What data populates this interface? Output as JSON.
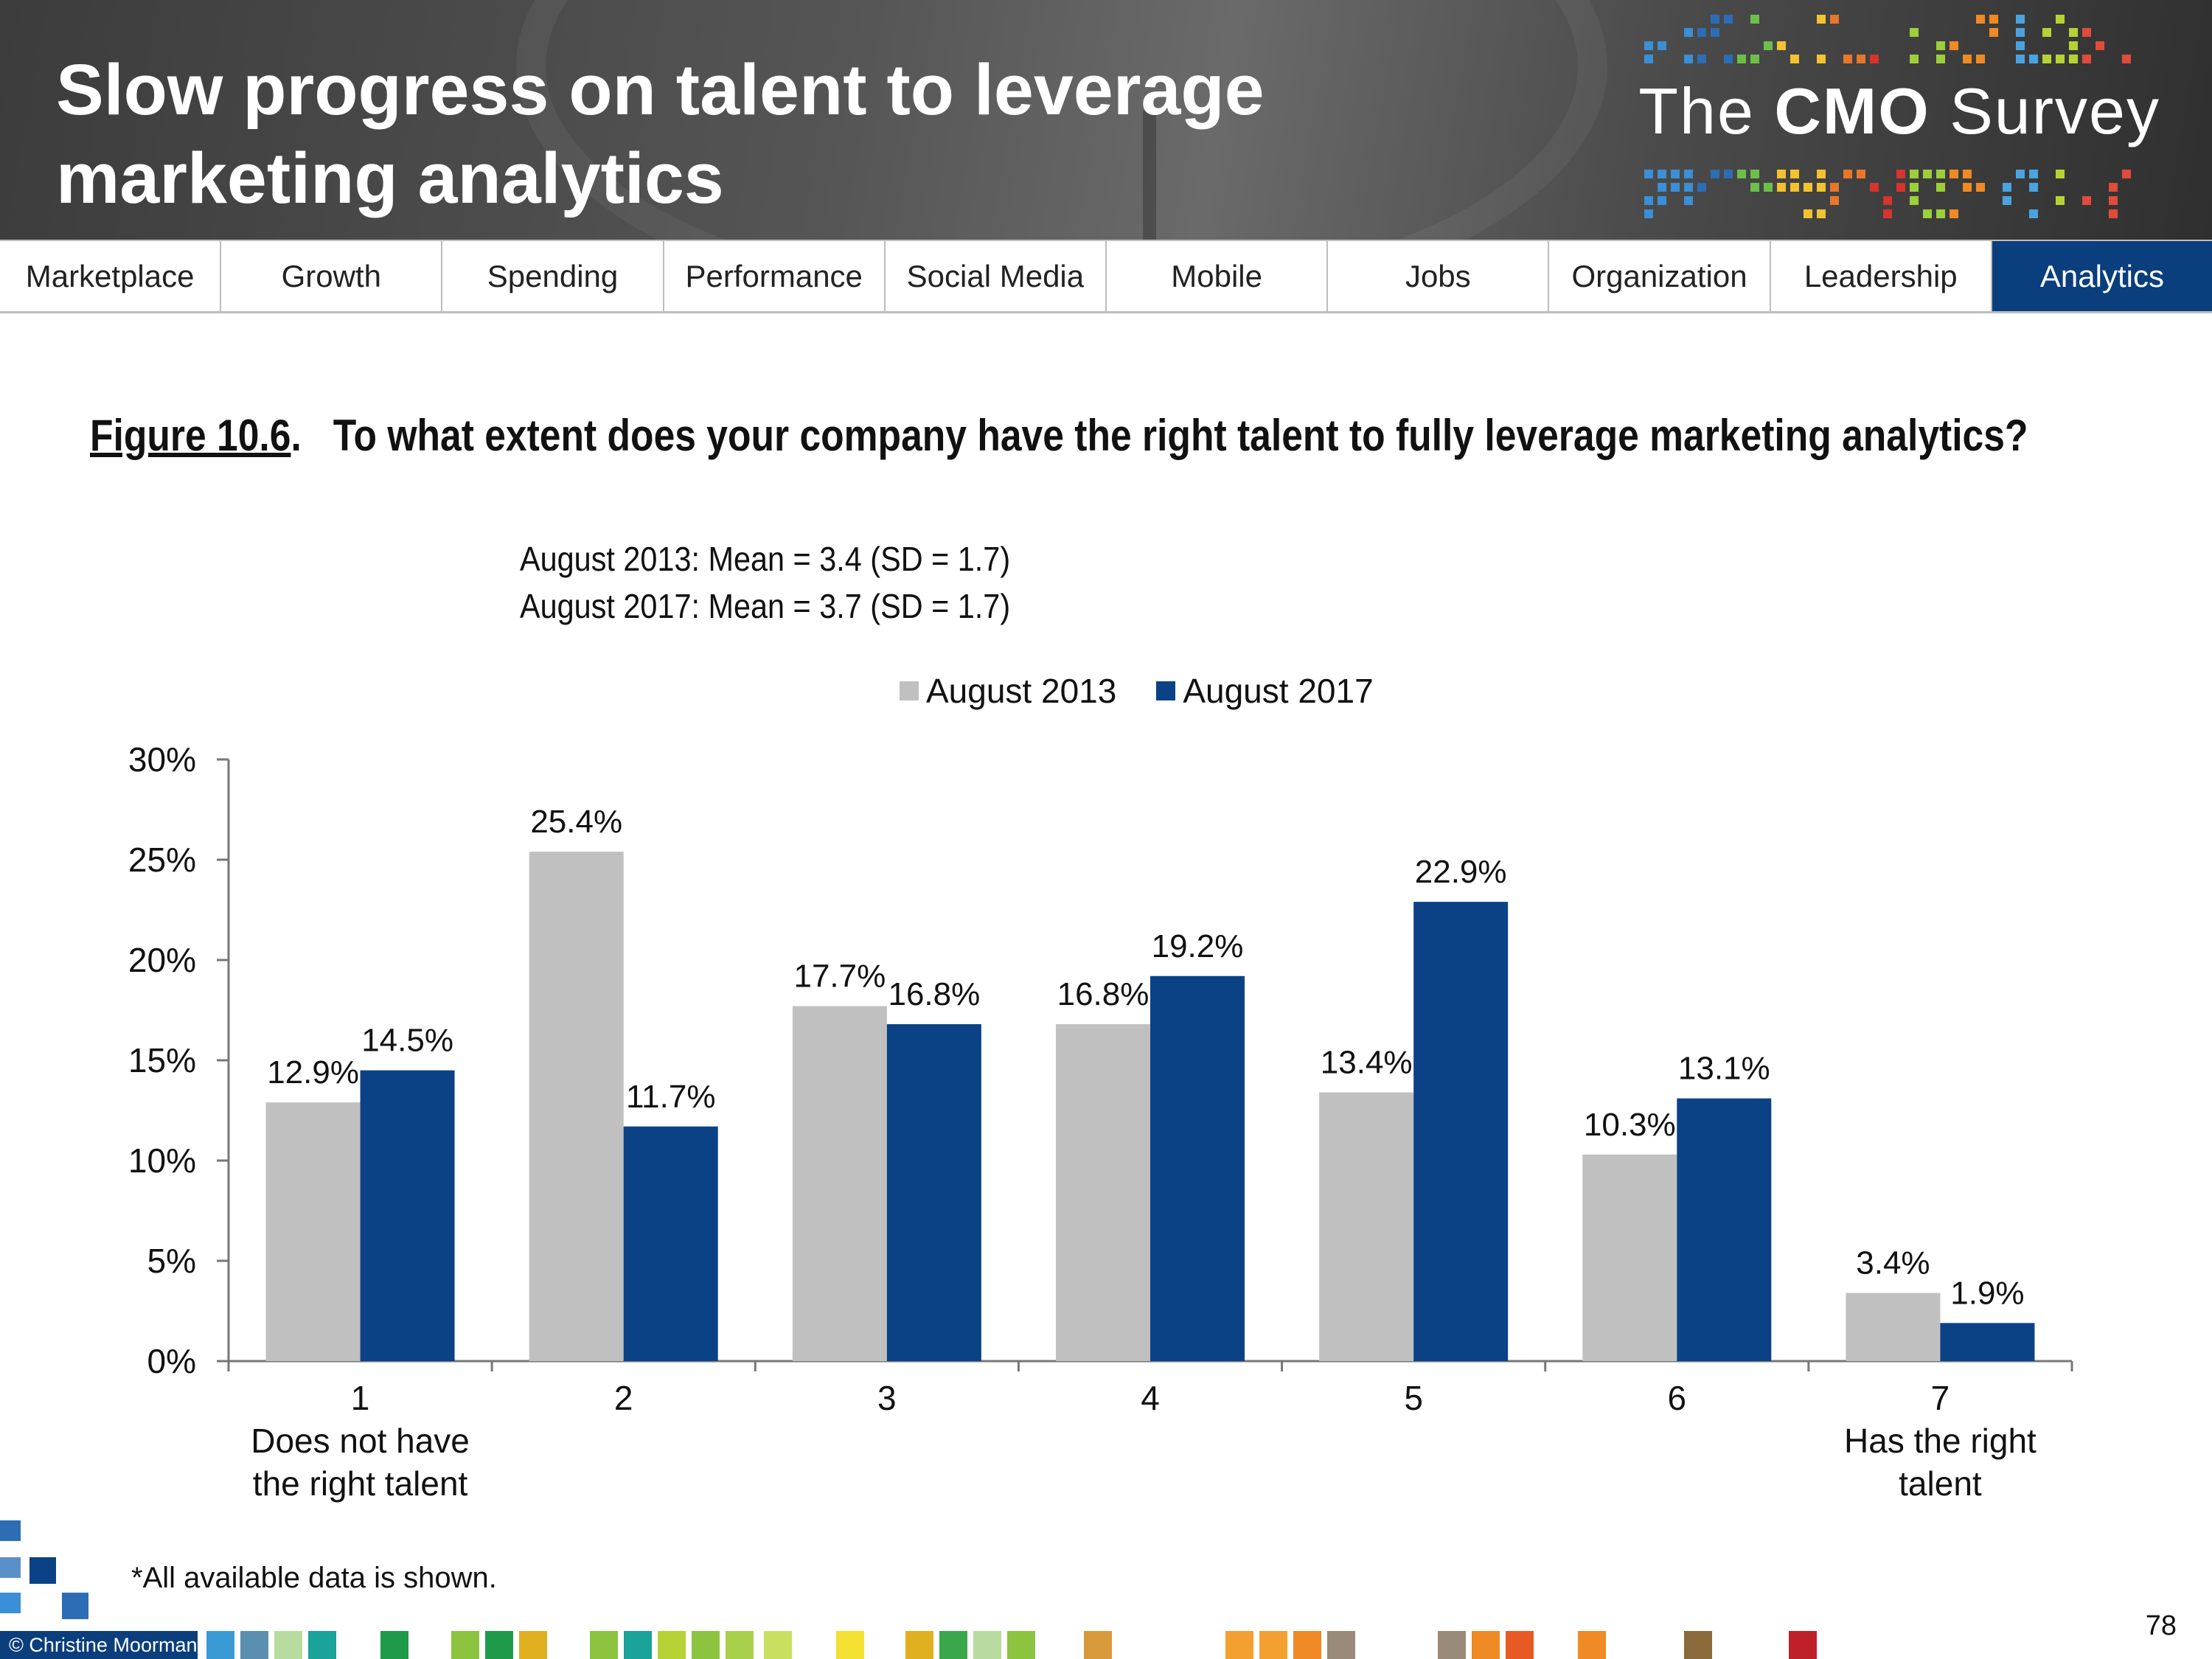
{
  "header": {
    "title_line1": "Slow progress on talent to leverage",
    "title_line2": "marketing analytics",
    "logo_prefix": "The ",
    "logo_bold": "CMO",
    "logo_suffix": " Survey"
  },
  "nav": {
    "items": [
      "Marketplace",
      "Growth",
      "Spending",
      "Performance",
      "Social Media",
      "Mobile",
      "Jobs",
      "Organization",
      "Leadership",
      "Analytics"
    ],
    "active": "Analytics"
  },
  "figure": {
    "label": "Figure 10.6",
    "question": "To what extent does your company have the right talent to fully leverage marketing analytics?",
    "stat_2013": "August 2013: Mean = 3.4 (SD = 1.7)",
    "stat_2017": "August 2017: Mean = 3.7 (SD = 1.7)"
  },
  "chart_data": {
    "type": "bar",
    "categories": [
      "1",
      "2",
      "3",
      "4",
      "5",
      "6",
      "7"
    ],
    "category_sublabels": [
      [
        "Does not have",
        "the right talent"
      ],
      [],
      [],
      [],
      [],
      [],
      [
        "Has the right",
        "talent"
      ]
    ],
    "series": [
      {
        "name": "August 2013",
        "color": "#c0c0c0",
        "values": [
          12.9,
          25.4,
          17.7,
          16.8,
          13.4,
          10.3,
          3.4
        ],
        "labels": [
          "12.9%",
          "25.4%",
          "17.7%",
          "16.8%",
          "13.4%",
          "10.3%",
          "3.4%"
        ]
      },
      {
        "name": "August 2017",
        "color": "#0a4285",
        "values": [
          14.5,
          11.7,
          16.8,
          19.2,
          22.9,
          13.1,
          1.9
        ],
        "labels": [
          "14.5%",
          "11.7%",
          "16.8%",
          "19.2%",
          "22.9%",
          "13.1%",
          "1.9%"
        ]
      }
    ],
    "ylim": [
      0,
      30
    ],
    "yticks": [
      "0%",
      "5%",
      "10%",
      "15%",
      "20%",
      "25%",
      "30%"
    ],
    "legend_position": "top"
  },
  "footer": {
    "note": "*All available data is shown.",
    "copyright": "© Christine Moorman",
    "page_number": "78"
  }
}
